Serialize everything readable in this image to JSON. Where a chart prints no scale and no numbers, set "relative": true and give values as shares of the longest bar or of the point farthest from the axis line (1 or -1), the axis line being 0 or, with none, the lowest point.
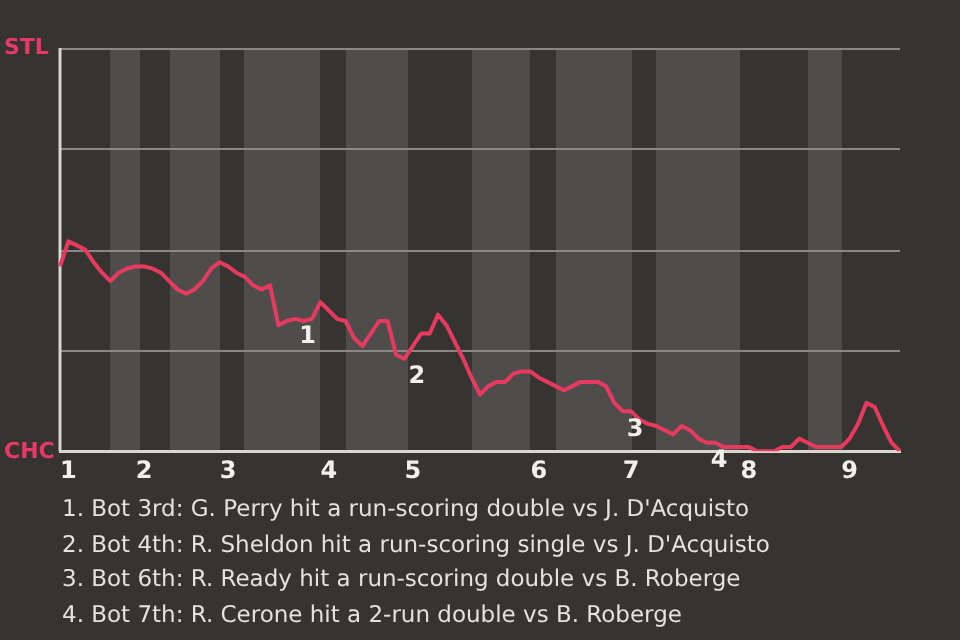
{
  "chart_data": {
    "type": "line",
    "categories": [
      null,
      "1",
      null,
      null,
      null,
      null,
      null,
      null,
      null,
      null,
      "2",
      null,
      null,
      null,
      null,
      null,
      null,
      null,
      null,
      null,
      "3",
      null,
      null,
      null,
      null,
      null,
      null,
      null,
      null,
      null,
      null,
      null,
      "4",
      null,
      null,
      null,
      null,
      null,
      null,
      null,
      null,
      null,
      "5",
      null,
      null,
      null,
      null,
      null,
      null,
      null,
      null,
      null,
      null,
      null,
      null,
      null,
      null,
      "6",
      null,
      null,
      null,
      null,
      null,
      null,
      null,
      null,
      null,
      null,
      "7",
      null,
      null,
      null,
      null,
      null,
      null,
      null,
      null,
      null,
      null,
      null,
      null,
      null,
      "8",
      null,
      null,
      null,
      null,
      null,
      null,
      null,
      null,
      null,
      null,
      null,
      "9",
      null,
      null,
      null,
      null,
      null,
      null
    ],
    "series": [
      {
        "color": "#e83a5f",
        "values": [
          0.88,
          1,
          0.98,
          0.96,
          0.9,
          0.85,
          0.81,
          0.85,
          0.87,
          0.88,
          0.88,
          0.87,
          0.85,
          0.81,
          0.77,
          0.75,
          0.77,
          0.81,
          0.87,
          0.9,
          0.88,
          0.85,
          0.83,
          0.79,
          0.77,
          0.79,
          0.6,
          0.62,
          0.63,
          0.62,
          0.63,
          0.71,
          0.67,
          0.63,
          0.62,
          0.54,
          0.5,
          0.56,
          0.62,
          0.62,
          0.46,
          0.44,
          0.5,
          0.56,
          0.56,
          0.65,
          0.6,
          0.52,
          0.44,
          0.35,
          0.27,
          0.31,
          0.33,
          0.33,
          0.37,
          0.38,
          0.38,
          0.35,
          0.33,
          0.31,
          0.29,
          0.31,
          0.33,
          0.33,
          0.33,
          0.31,
          0.23,
          0.19,
          0.19,
          0.15,
          0.13,
          0.12,
          0.1,
          0.08,
          0.12,
          0.1,
          0.06,
          0.04,
          0.04,
          0.02,
          0.02,
          0.02,
          0.02,
          0,
          0,
          0,
          0.02,
          0.02,
          0.06,
          0.04,
          0.02,
          0.02,
          0.02,
          0.02,
          0.06,
          0.13,
          0.23,
          0.21,
          0.12,
          0.04,
          0
        ]
      }
    ],
    "relative": true,
    "ref_lines": [
      {
        "axis": "y",
        "value": 0.96,
        "color": "#8a8884"
      },
      {
        "axis": "y",
        "value": 0.48,
        "color": "#8a8884"
      }
    ],
    "marker": "none",
    "line_style": "solid",
    "annotations": [
      "STL",
      "CHC",
      {
        "text": "1",
        "y": 0.63
      },
      {
        "text": "2",
        "y": 0.44
      },
      {
        "text": "3",
        "y": 0.19
      },
      {
        "text": "4",
        "y": 0.04
      },
      "1. Bot 3rd: G. Perry hit a run-scoring double vs J. D'Acquisto",
      "2. Bot 4th: R. Sheldon hit a run-scoring single vs J. D'Acquisto",
      "3. Bot 6th: R. Ready hit a run-scoring double vs B. Roberge",
      "4. Bot 7th: R. Cerone hit a 2-run double vs B. Roberge"
    ]
  }
}
